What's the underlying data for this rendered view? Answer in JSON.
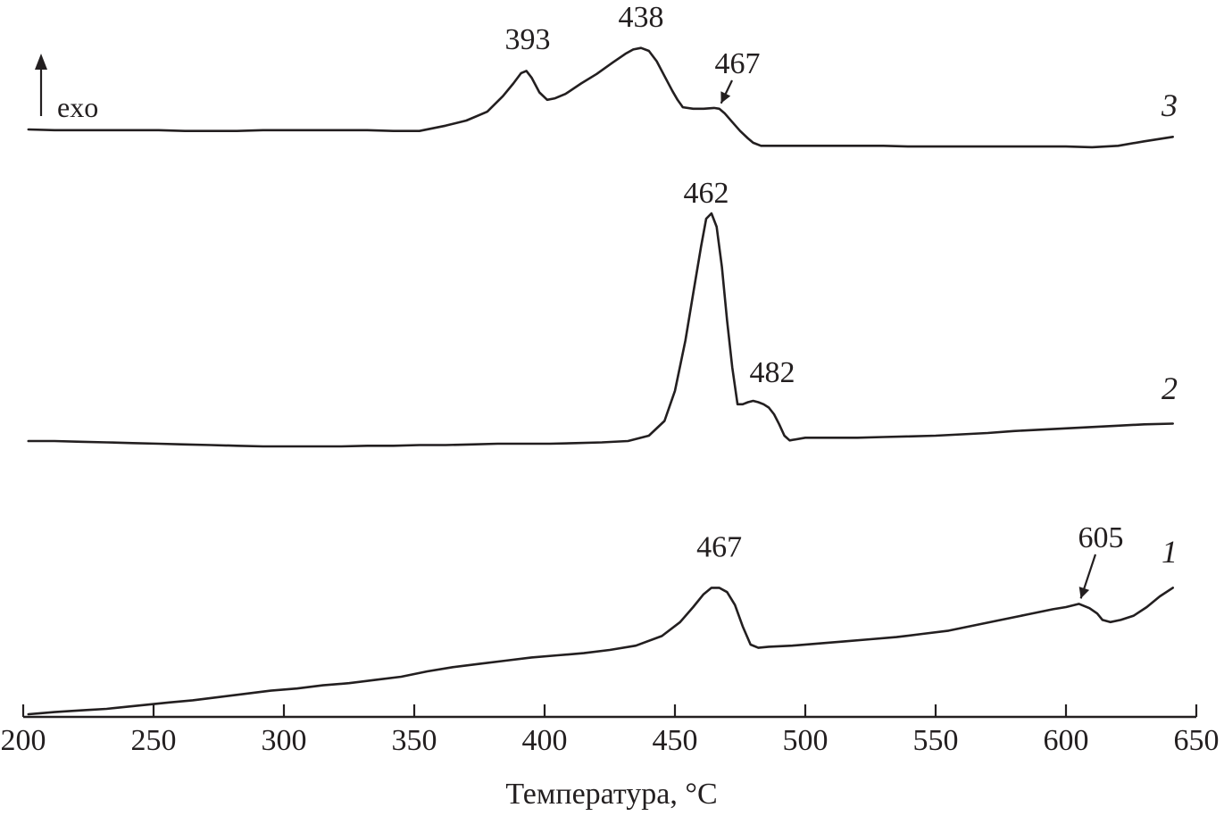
{
  "chart_data": {
    "type": "line",
    "xlabel": "Температура, °C",
    "ylabel": "",
    "xlim": [
      200,
      650
    ],
    "xticks": [
      200,
      250,
      300,
      350,
      400,
      450,
      500,
      550,
      600,
      650
    ],
    "grid": false,
    "y_units": "arbitrary (DTA signal, curves vertically offset)",
    "exo_label": "exo",
    "series": [
      {
        "name": "1",
        "x": [
          202,
          207,
          212,
          218,
          225,
          232,
          240,
          248,
          256,
          265,
          275,
          285,
          295,
          305,
          315,
          325,
          335,
          345,
          355,
          365,
          375,
          385,
          395,
          405,
          415,
          425,
          435,
          445,
          452,
          457,
          461,
          464,
          467,
          470,
          473,
          476,
          479,
          482,
          486,
          495,
          505,
          515,
          525,
          535,
          545,
          555,
          565,
          575,
          585,
          595,
          600,
          605,
          609,
          612,
          614,
          617,
          621,
          626,
          631,
          636,
          641
        ],
        "y": [
          0.0,
          0.01,
          0.02,
          0.03,
          0.04,
          0.05,
          0.07,
          0.09,
          0.11,
          0.13,
          0.16,
          0.19,
          0.22,
          0.24,
          0.27,
          0.29,
          0.32,
          0.35,
          0.4,
          0.44,
          0.47,
          0.5,
          0.53,
          0.55,
          0.57,
          0.6,
          0.64,
          0.73,
          0.86,
          1.0,
          1.12,
          1.18,
          1.18,
          1.14,
          1.02,
          0.82,
          0.65,
          0.62,
          0.63,
          0.64,
          0.66,
          0.68,
          0.7,
          0.72,
          0.75,
          0.78,
          0.83,
          0.88,
          0.93,
          0.98,
          1.0,
          1.03,
          0.99,
          0.94,
          0.88,
          0.86,
          0.88,
          0.92,
          1.0,
          1.1,
          1.18
        ],
        "peaks": [
          {
            "x": 467,
            "label": "467"
          },
          {
            "x": 605,
            "label": "605"
          }
        ]
      },
      {
        "name": "2",
        "x": [
          202,
          212,
          222,
          232,
          242,
          252,
          262,
          272,
          282,
          292,
          302,
          312,
          322,
          332,
          342,
          352,
          362,
          372,
          382,
          392,
          402,
          412,
          422,
          432,
          440,
          446,
          450,
          454,
          457,
          460,
          462,
          464,
          466,
          468,
          470,
          472,
          474,
          476,
          478,
          480,
          482,
          484,
          486,
          488,
          490,
          492,
          494,
          500,
          510,
          520,
          530,
          540,
          550,
          560,
          570,
          580,
          590,
          600,
          610,
          620,
          630,
          641
        ],
        "y": [
          0.0,
          0.0,
          -0.01,
          -0.02,
          -0.03,
          -0.04,
          -0.05,
          -0.06,
          -0.07,
          -0.08,
          -0.08,
          -0.08,
          -0.08,
          -0.07,
          -0.07,
          -0.06,
          -0.06,
          -0.05,
          -0.04,
          -0.04,
          -0.04,
          -0.03,
          -0.02,
          0.0,
          0.08,
          0.3,
          0.75,
          1.5,
          2.2,
          2.9,
          3.32,
          3.4,
          3.2,
          2.6,
          1.8,
          1.1,
          0.55,
          0.55,
          0.58,
          0.6,
          0.58,
          0.55,
          0.5,
          0.4,
          0.25,
          0.08,
          0.01,
          0.05,
          0.05,
          0.05,
          0.06,
          0.07,
          0.08,
          0.1,
          0.12,
          0.15,
          0.17,
          0.19,
          0.21,
          0.23,
          0.25,
          0.26
        ],
        "peaks": [
          {
            "x": 462,
            "label": "462"
          },
          {
            "x": 482,
            "label": "482"
          }
        ]
      },
      {
        "name": "3",
        "x": [
          202,
          212,
          222,
          232,
          242,
          252,
          262,
          272,
          282,
          292,
          302,
          312,
          322,
          332,
          342,
          352,
          362,
          370,
          378,
          384,
          388,
          391,
          393,
          395,
          398,
          401,
          404,
          408,
          414,
          420,
          426,
          431,
          434,
          437,
          440,
          443,
          446,
          449,
          451,
          453,
          457,
          461,
          465,
          467,
          469,
          472,
          475,
          478,
          480,
          483,
          490,
          500,
          510,
          520,
          530,
          540,
          550,
          560,
          570,
          580,
          590,
          600,
          610,
          620,
          630,
          641
        ],
        "y": [
          0.0,
          -0.01,
          -0.01,
          -0.01,
          -0.01,
          -0.01,
          -0.02,
          -0.02,
          -0.02,
          -0.01,
          -0.01,
          -0.01,
          -0.01,
          -0.01,
          -0.02,
          -0.02,
          0.05,
          0.12,
          0.24,
          0.45,
          0.62,
          0.76,
          0.79,
          0.7,
          0.5,
          0.4,
          0.42,
          0.48,
          0.62,
          0.75,
          0.9,
          1.02,
          1.08,
          1.1,
          1.06,
          0.92,
          0.72,
          0.52,
          0.4,
          0.3,
          0.28,
          0.28,
          0.29,
          0.28,
          0.22,
          0.1,
          -0.02,
          -0.12,
          -0.18,
          -0.22,
          -0.22,
          -0.22,
          -0.22,
          -0.22,
          -0.22,
          -0.23,
          -0.23,
          -0.23,
          -0.23,
          -0.23,
          -0.23,
          -0.23,
          -0.24,
          -0.22,
          -0.16,
          -0.1
        ],
        "peaks": [
          {
            "x": 393,
            "label": "393"
          },
          {
            "x": 438,
            "label": "438"
          },
          {
            "x": 467,
            "label": "467"
          }
        ]
      }
    ]
  }
}
